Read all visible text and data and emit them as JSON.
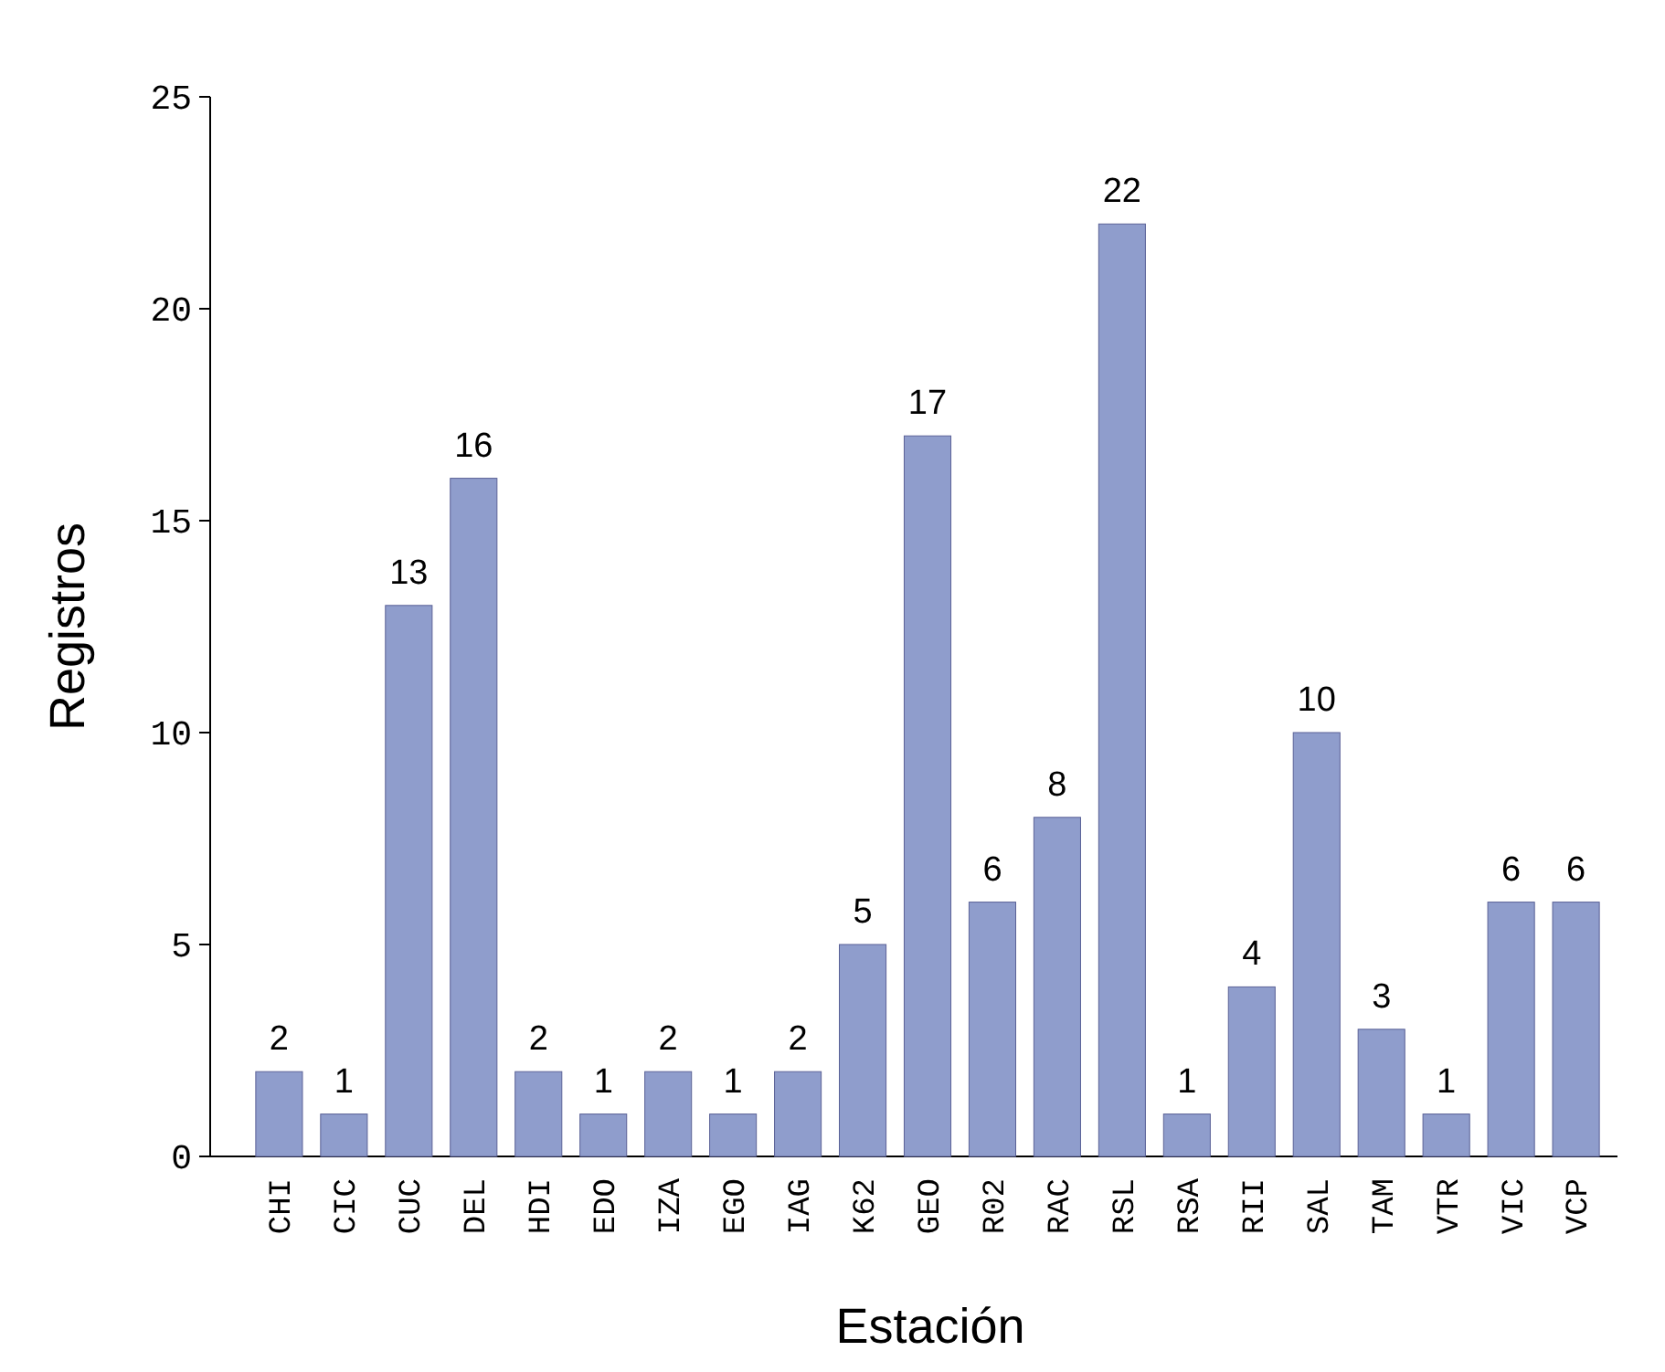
{
  "chart_data": {
    "type": "bar",
    "xlabel": "Estación",
    "ylabel": "Registros",
    "categories": [
      "CHI",
      "CIC",
      "CUC",
      "DEL",
      "HDI",
      "EDO",
      "IZA",
      "EGO",
      "IAG",
      "K62",
      "GEO",
      "R02",
      "RAC",
      "RSL",
      "RSA",
      "RII",
      "SAL",
      "TAM",
      "VTR",
      "VIC",
      "VCP"
    ],
    "values": [
      2,
      1,
      13,
      16,
      2,
      1,
      2,
      1,
      2,
      5,
      17,
      6,
      8,
      22,
      1,
      4,
      10,
      3,
      1,
      6,
      6
    ],
    "color": "#8f9dcc",
    "ylim": [
      0,
      25
    ],
    "yticks": [
      0,
      5,
      10,
      15,
      20,
      25
    ],
    "grid": false,
    "data_labels": true
  }
}
